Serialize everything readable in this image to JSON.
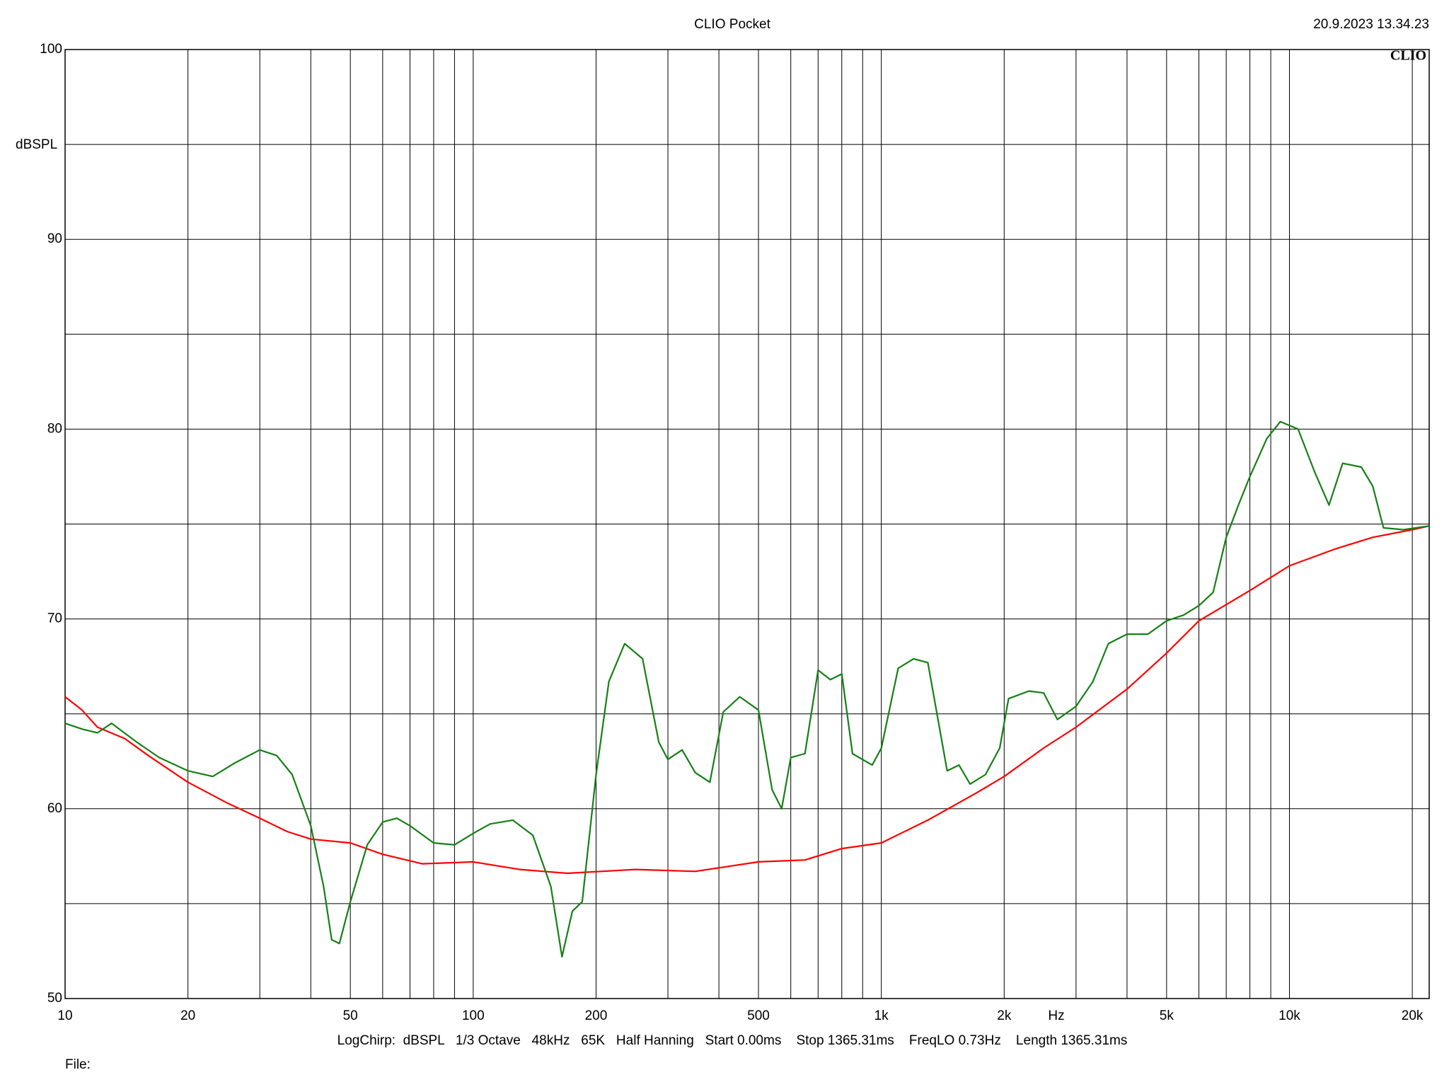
{
  "chart_data": {
    "type": "line",
    "title": "CLIO Pocket",
    "timestamp": "20.9.2023 13.34.23",
    "logo": "CLIO",
    "x_label": "Hz",
    "y_label": "dBSPL",
    "footer": "LogChirp:  dBSPL   1/3 Octave   48kHz   65K   Half Hanning   Start 0.00ms    Stop 1365.31ms    FreqLO 0.73Hz    Length 1365.31ms",
    "file_label": "File:",
    "xscale": "log",
    "grid": true,
    "xlim": [
      10,
      22000
    ],
    "ylim": [
      50,
      100
    ],
    "xticks": [
      10,
      20,
      50,
      100,
      200,
      500,
      {
        "value": 1000,
        "label": "1k"
      },
      {
        "value": 2000,
        "label": "2k"
      },
      {
        "value": 5000,
        "label": "5k"
      },
      {
        "value": 10000,
        "label": "10k"
      },
      {
        "value": 20000,
        "label": "20k"
      }
    ],
    "xgrid_minor": [
      30,
      40,
      60,
      70,
      80,
      90,
      300,
      400,
      600,
      700,
      800,
      900,
      3000,
      4000,
      6000,
      7000,
      8000,
      9000
    ],
    "yticks": [
      50,
      60,
      70,
      80,
      90,
      100
    ],
    "ygrid_minor": [
      55,
      65,
      75,
      85,
      95
    ],
    "series": [
      {
        "color": "#ff0000",
        "x": [
          10,
          11,
          12,
          14,
          16,
          20,
          25,
          30,
          35,
          40,
          50,
          60,
          75,
          100,
          130,
          170,
          250,
          350,
          500,
          650,
          800,
          1000,
          1300,
          1700,
          2000,
          2500,
          3000,
          4000,
          5000,
          6000,
          8000,
          10000,
          13000,
          16000,
          20000,
          22000
        ],
        "values": [
          65.9,
          65.2,
          64.3,
          63.7,
          62.8,
          61.4,
          60.3,
          59.5,
          58.8,
          58.4,
          58.2,
          57.6,
          57.1,
          57.2,
          56.8,
          56.6,
          56.8,
          56.7,
          57.2,
          57.3,
          57.9,
          58.2,
          59.4,
          60.8,
          61.7,
          63.2,
          64.3,
          66.3,
          68.2,
          69.9,
          71.5,
          72.8,
          73.7,
          74.3,
          74.7,
          74.9
        ]
      },
      {
        "color": "#158015",
        "x": [
          10,
          11,
          12,
          13,
          15,
          17,
          20,
          23,
          26,
          30,
          33,
          36,
          40,
          43,
          45,
          47,
          50,
          55,
          60,
          65,
          70,
          80,
          90,
          100,
          110,
          125,
          140,
          155,
          165,
          175,
          185,
          200,
          215,
          235,
          260,
          285,
          300,
          325,
          350,
          380,
          410,
          450,
          500,
          540,
          570,
          600,
          650,
          700,
          750,
          800,
          850,
          950,
          1000,
          1100,
          1200,
          1300,
          1450,
          1550,
          1650,
          1800,
          1950,
          2050,
          2300,
          2500,
          2700,
          3000,
          3300,
          3600,
          4000,
          4500,
          5000,
          5500,
          6000,
          6500,
          7000,
          7500,
          8000,
          8800,
          9500,
          10500,
          11500,
          12500,
          13500,
          15000,
          16000,
          17000,
          19000,
          22000
        ],
        "values": [
          64.5,
          64.2,
          64.0,
          64.5,
          63.5,
          62.7,
          62.0,
          61.7,
          62.4,
          63.1,
          62.8,
          61.8,
          59.1,
          55.9,
          53.1,
          52.9,
          55.1,
          58.1,
          59.3,
          59.5,
          59.1,
          58.2,
          58.1,
          58.7,
          59.2,
          59.4,
          58.6,
          55.9,
          52.2,
          54.6,
          55.1,
          61.8,
          66.7,
          68.7,
          67.9,
          63.5,
          62.6,
          63.1,
          61.9,
          61.4,
          65.1,
          65.9,
          65.2,
          61.0,
          60.0,
          62.7,
          62.9,
          67.3,
          66.8,
          67.1,
          62.9,
          62.3,
          63.2,
          67.4,
          67.9,
          67.7,
          62.0,
          62.3,
          61.3,
          61.8,
          63.2,
          65.8,
          66.2,
          66.1,
          64.7,
          65.4,
          66.7,
          68.7,
          69.2,
          69.2,
          69.9,
          70.2,
          70.7,
          71.4,
          74.3,
          76.0,
          77.5,
          79.5,
          80.4,
          80.0,
          77.8,
          76.0,
          78.2,
          78.0,
          77.0,
          74.8,
          74.7,
          74.9
        ]
      }
    ]
  }
}
